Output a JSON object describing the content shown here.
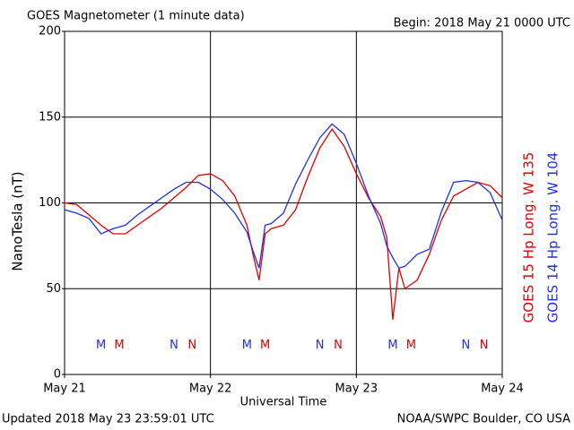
{
  "chart_data": {
    "type": "line",
    "title": "GOES Magnetometer (1 minute data)",
    "subtitle": "Begin:  2018 May 21 0000 UTC",
    "ylabel": "NanoTesla (nT)",
    "xlabel": "Universal Time",
    "footer_left": "Updated 2018 May 23 23:59:01 UTC",
    "footer_right": "NOAA/SWPC Boulder, CO USA",
    "xlim": [
      0,
      72
    ],
    "xticks": [
      {
        "value": 0,
        "label": "May 21"
      },
      {
        "value": 24,
        "label": "May 22"
      },
      {
        "value": 48,
        "label": "May 23"
      },
      {
        "value": 72,
        "label": "May 24"
      }
    ],
    "ylim": [
      0,
      200
    ],
    "yticks": [
      0,
      50,
      100,
      150,
      200
    ],
    "grid": true,
    "x": [
      0,
      2,
      4,
      6,
      8,
      10,
      12,
      14,
      16,
      18,
      20,
      22,
      24,
      26,
      28,
      30,
      31,
      32,
      33,
      34,
      36,
      38,
      40,
      42,
      44,
      46,
      48,
      50,
      52,
      53,
      54,
      55,
      56,
      58,
      60,
      62,
      64,
      66,
      68,
      70,
      72
    ],
    "series": [
      {
        "name": "GOES 15 Hp  Long. W 135",
        "color": "#e00000",
        "values": [
          100,
          99,
          93,
          87,
          82,
          82,
          87,
          92,
          97,
          103,
          109,
          116,
          117,
          113,
          104,
          87,
          70,
          55,
          82,
          85,
          87,
          96,
          115,
          132,
          143,
          133,
          117,
          103,
          92,
          80,
          32,
          62,
          50,
          55,
          70,
          90,
          104,
          108,
          112,
          110,
          103
        ]
      },
      {
        "name": "GOES 14 Hp  Long. W 104",
        "color": "#2030e0",
        "values": [
          96,
          94,
          91,
          82,
          85,
          87,
          93,
          98,
          103,
          108,
          112,
          112,
          108,
          102,
          94,
          83,
          72,
          62,
          87,
          88,
          94,
          111,
          125,
          138,
          146,
          140,
          123,
          104,
          88,
          75,
          68,
          62,
          63,
          70,
          73,
          95,
          112,
          113,
          112,
          106,
          90
        ]
      }
    ],
    "annotations": [
      {
        "text": "M",
        "x": 6,
        "y": 17,
        "color": "#2030e0"
      },
      {
        "text": "M",
        "x": 9,
        "y": 17,
        "color": "#e00000"
      },
      {
        "text": "N",
        "x": 18,
        "y": 17,
        "color": "#2030e0"
      },
      {
        "text": "N",
        "x": 21,
        "y": 17,
        "color": "#e00000"
      },
      {
        "text": "M",
        "x": 30,
        "y": 17,
        "color": "#2030e0"
      },
      {
        "text": "M",
        "x": 33,
        "y": 17,
        "color": "#e00000"
      },
      {
        "text": "N",
        "x": 42,
        "y": 17,
        "color": "#2030e0"
      },
      {
        "text": "N",
        "x": 45,
        "y": 17,
        "color": "#e00000"
      },
      {
        "text": "M",
        "x": 54,
        "y": 17,
        "color": "#2030e0"
      },
      {
        "text": "M",
        "x": 57,
        "y": 17,
        "color": "#e00000"
      },
      {
        "text": "N",
        "x": 66,
        "y": 17,
        "color": "#2030e0"
      },
      {
        "text": "N",
        "x": 69,
        "y": 17,
        "color": "#e00000"
      }
    ]
  }
}
